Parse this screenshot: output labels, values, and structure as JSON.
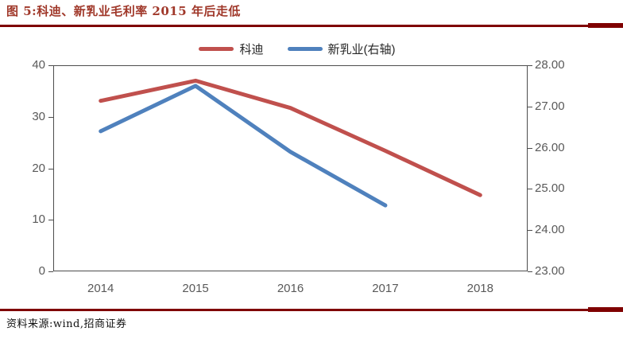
{
  "figure": {
    "title": "图 5:科迪、新乳业毛利率 2015 年后走低",
    "source": "资料来源:wind,招商证券"
  },
  "legend": [
    {
      "label": "科迪"
    },
    {
      "label": "新乳业(右轴)"
    }
  ],
  "chart_data": {
    "type": "line",
    "title": "科迪、新乳业毛利率 2015 年后走低",
    "categories": [
      "2014",
      "2015",
      "2016",
      "2017",
      "2018"
    ],
    "series": [
      {
        "name": "科迪",
        "axis": "left",
        "color": "#C0504D",
        "values": [
          33.1,
          37.0,
          31.7,
          23.4,
          14.8
        ]
      },
      {
        "name": "新乳业(右轴)",
        "axis": "right",
        "color": "#4F81BD",
        "values": [
          26.4,
          27.5,
          25.9,
          24.6,
          null
        ]
      }
    ],
    "left_axis": {
      "min": 0,
      "max": 40,
      "ticks": [
        "40",
        "30",
        "20",
        "10",
        "0"
      ]
    },
    "right_axis": {
      "min": 23,
      "max": 28,
      "ticks": [
        "28.00",
        "27.00",
        "26.00",
        "25.00",
        "24.00",
        "23.00"
      ]
    },
    "legend_position": "top",
    "grid": false
  },
  "colors": {
    "title": "#A0382A",
    "rule": "#7F0000",
    "kedi_line": "#C0504D",
    "xinruye_line": "#4F81BD",
    "axis_text": "#595959",
    "plot_border": "#4D4D4D"
  }
}
